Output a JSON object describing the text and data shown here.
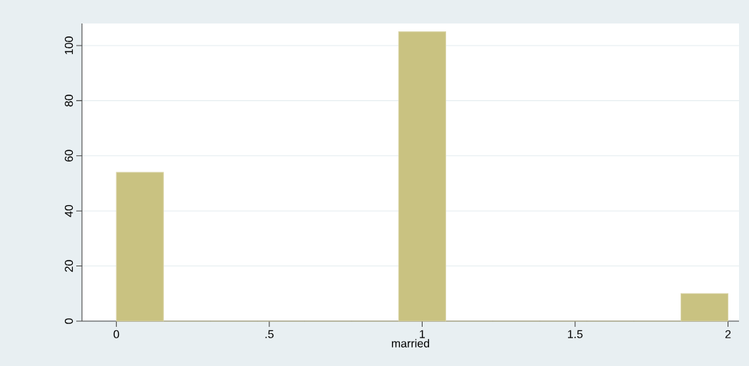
{
  "chart_data": {
    "type": "histogram",
    "xlabel": "married",
    "bins": [
      0,
      0.1538,
      0.3077,
      0.4615,
      0.6154,
      0.7692,
      0.9231,
      1.0769,
      1.2308,
      1.3846,
      1.5385,
      1.6923,
      1.8462,
      2
    ],
    "values": [
      54,
      0,
      0,
      0,
      0,
      0,
      105,
      0,
      0,
      0,
      0,
      0,
      10
    ],
    "color": "#c9c281",
    "xlim": [
      -0.1125,
      2.036
    ],
    "ylim": [
      0,
      108
    ],
    "xticks": [
      0,
      {
        "value": 0.5,
        "label": ".5"
      },
      1,
      1.5,
      2
    ],
    "yticks": [
      0,
      20,
      40,
      60,
      80,
      100
    ],
    "grid": "y"
  }
}
